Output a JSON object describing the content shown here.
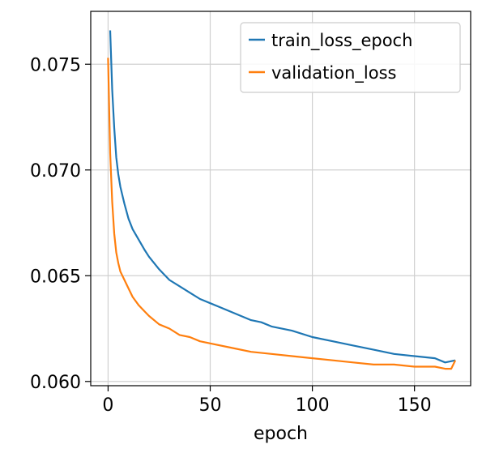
{
  "chart_data": {
    "type": "line",
    "title": "",
    "xlabel": "epoch",
    "ylabel": "",
    "xlim": [
      -8.5,
      177.5
    ],
    "ylim": [
      0.0598,
      0.0775
    ],
    "xticks": [
      0,
      50,
      100,
      150
    ],
    "yticks": [
      0.06,
      0.065,
      0.07,
      0.075
    ],
    "xtick_labels": [
      "0",
      "50",
      "100",
      "150"
    ],
    "ytick_labels": [
      "0.060",
      "0.065",
      "0.070",
      "0.075"
    ],
    "grid": true,
    "legend_position": "top-right",
    "series": [
      {
        "name": "train_loss_epoch",
        "color": "#1f77b4",
        "x": [
          1,
          2,
          3,
          4,
          5,
          6,
          7,
          8,
          10,
          12,
          15,
          18,
          20,
          25,
          30,
          35,
          40,
          45,
          50,
          55,
          60,
          65,
          70,
          75,
          80,
          90,
          100,
          110,
          120,
          130,
          140,
          150,
          160,
          165,
          170
        ],
        "y": [
          0.0766,
          0.0738,
          0.072,
          0.0706,
          0.0698,
          0.0692,
          0.0688,
          0.0684,
          0.0677,
          0.0672,
          0.0667,
          0.0662,
          0.0659,
          0.0653,
          0.0648,
          0.0645,
          0.0642,
          0.0639,
          0.0637,
          0.0635,
          0.0633,
          0.0631,
          0.0629,
          0.0628,
          0.0626,
          0.0624,
          0.0621,
          0.0619,
          0.0617,
          0.0615,
          0.0613,
          0.0612,
          0.0611,
          0.0609,
          0.061
        ]
      },
      {
        "name": "validation_loss",
        "color": "#ff7f0e",
        "x": [
          0,
          1,
          2,
          3,
          4,
          5,
          6,
          7,
          8,
          10,
          12,
          15,
          18,
          20,
          25,
          30,
          35,
          40,
          45,
          50,
          60,
          70,
          80,
          90,
          100,
          110,
          120,
          130,
          140,
          150,
          160,
          165,
          168,
          170
        ],
        "y": [
          0.0753,
          0.0708,
          0.0685,
          0.067,
          0.0661,
          0.0656,
          0.0652,
          0.065,
          0.0648,
          0.0644,
          0.064,
          0.0636,
          0.0633,
          0.0631,
          0.0627,
          0.0625,
          0.0622,
          0.0621,
          0.0619,
          0.0618,
          0.0616,
          0.0614,
          0.0613,
          0.0612,
          0.0611,
          0.061,
          0.0609,
          0.0608,
          0.0608,
          0.0607,
          0.0607,
          0.0606,
          0.0606,
          0.061
        ]
      }
    ]
  }
}
